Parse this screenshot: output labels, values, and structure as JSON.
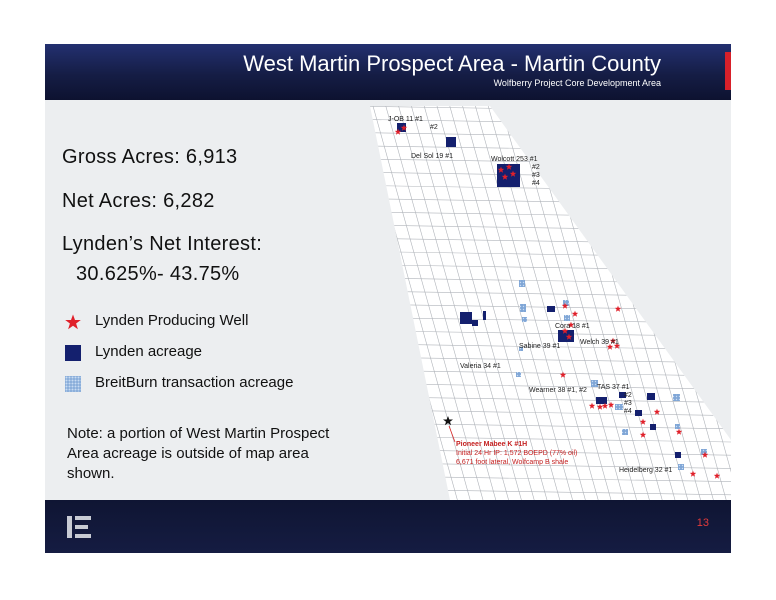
{
  "header": {
    "title": "West Martin Prospect Area - Martin County",
    "subtitle": "Wolfberry Project Core Development Area"
  },
  "stats": {
    "gross_acres": "Gross Acres: 6,913",
    "net_acres": "Net Acres: 6,282",
    "net_interest_label": "Lynden’s Net Interest:",
    "net_interest_value": "30.625%- 43.75%"
  },
  "legend": {
    "producing_well": "Lynden Producing Well",
    "acreage": "Lynden acreage",
    "breitburn": "BreitBurn transaction acreage"
  },
  "note": "Note: a portion of West Martin Prospect Area acreage is outside of map area shown.",
  "map": {
    "well_labels": {
      "job11": "J-OB 11  #1",
      "job11_2": "#2",
      "delsol": "Del Sol 19  #1",
      "wolcott": "Wolcott 253  #1",
      "wolcott_2": "#2",
      "wolcott_3": "#3",
      "wolcott_4": "#4",
      "cora": "Cora 18 #1",
      "welch": "Welch 39 #1",
      "sabine": "Sabine 39 #1",
      "valeria": "Valeria 34 #1",
      "wearner": "Wearner 38 #1, #2",
      "tas": "TAS 37 #1",
      "tas_2": "#2",
      "tas_3": "#3",
      "tas_4": "#4",
      "heidelberg": "Heidelberg 32 #1"
    },
    "pioneer": {
      "name": "Pioneer Mabee K #1H",
      "line1": "Initial 24 Hr IP: 1,572 BOEPD (77% oil)",
      "line2": "6,671 foot lateral, Wolfcamp B shale"
    }
  },
  "footer": {
    "page_number": "13"
  },
  "colors": {
    "header_navy": "#151d45",
    "accent_red": "#d8202a",
    "lynden_acreage": "#14206e",
    "breitburn_acreage": "#7fa6d6",
    "well_star": "#e0202a"
  }
}
